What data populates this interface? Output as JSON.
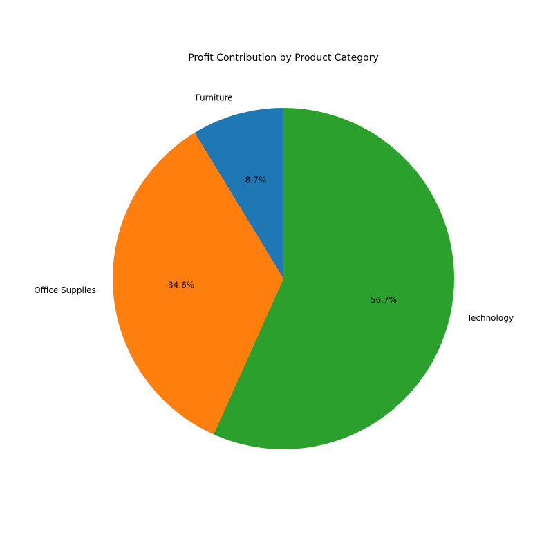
{
  "chart_data": {
    "type": "pie",
    "title": "Profit Contribution by Product Category",
    "start_angle_deg": 90,
    "direction": "counterclockwise",
    "slices": [
      {
        "label": "Furniture",
        "value": 8.7,
        "pct_label": "8.7%",
        "color": "#1f77b4"
      },
      {
        "label": "Office Supplies",
        "value": 34.6,
        "pct_label": "34.6%",
        "color": "#ff7f0e"
      },
      {
        "label": "Technology",
        "value": 56.7,
        "pct_label": "56.7%",
        "color": "#2ca02c"
      }
    ]
  }
}
